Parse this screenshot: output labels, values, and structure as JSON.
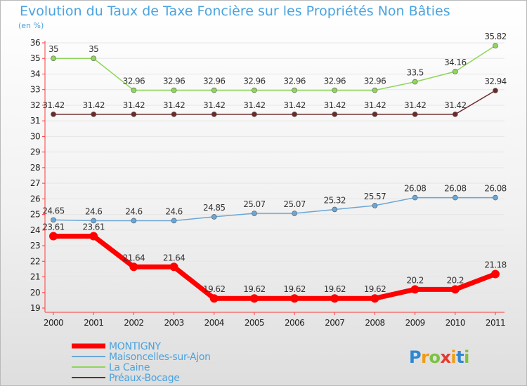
{
  "chart_data": {
    "type": "line",
    "title": "Evolution du Taux de Taxe Foncière sur les Propriétés Non Bâties",
    "subtitle": "(en %)",
    "x": [
      2000,
      2001,
      2002,
      2003,
      2004,
      2005,
      2006,
      2007,
      2008,
      2009,
      2010,
      2011
    ],
    "xlabels": [
      "2000",
      "2001",
      "2002",
      "2003",
      "2004",
      "2005",
      "2006",
      "2007",
      "2008",
      "2009",
      "2010",
      "2011"
    ],
    "ylim": [
      19,
      36
    ],
    "yticks": [
      "19",
      "20",
      "21",
      "22",
      "23",
      "24",
      "25",
      "26",
      "27",
      "28",
      "29",
      "30",
      "31",
      "32",
      "33",
      "34",
      "35",
      "36"
    ],
    "grid": "horizontal",
    "series": [
      {
        "name": "Préaux-Bocage",
        "color": "#6b2a2a",
        "stroke": 1.5,
        "marker": 3.5,
        "values": [
          31.42,
          31.42,
          31.42,
          31.42,
          31.42,
          31.42,
          31.42,
          31.42,
          31.42,
          31.42,
          31.42,
          32.94
        ],
        "labels": [
          "31.42",
          "31.42",
          "31.42",
          "31.42",
          "31.42",
          "31.42",
          "31.42",
          "31.42",
          "31.42",
          "31.42",
          "31.42",
          "32.94"
        ]
      },
      {
        "name": "La Caine",
        "color": "#8fd65a",
        "stroke": 1.5,
        "marker": 3.5,
        "values": [
          35,
          35,
          32.96,
          32.96,
          32.96,
          32.96,
          32.96,
          32.96,
          32.96,
          33.5,
          34.16,
          35.82
        ],
        "labels": [
          "35",
          "35",
          "32.96",
          "32.96",
          "32.96",
          "32.96",
          "32.96",
          "32.96",
          "32.96",
          "33.5",
          "34.16",
          "35.82"
        ]
      },
      {
        "name": "Maisoncelles-sur-Ajon",
        "color": "#6aa6d6",
        "stroke": 1.5,
        "marker": 3.5,
        "values": [
          24.65,
          24.6,
          24.6,
          24.6,
          24.85,
          25.07,
          25.07,
          25.32,
          25.57,
          26.08,
          26.08,
          26.08
        ],
        "labels": [
          "24.65",
          "24.6",
          "24.6",
          "24.6",
          "24.85",
          "25.07",
          "25.07",
          "25.32",
          "25.57",
          "26.08",
          "26.08",
          "26.08"
        ]
      },
      {
        "name": "MONTIGNY",
        "color": "#ff0000",
        "stroke": 7,
        "marker": 6,
        "values": [
          23.61,
          23.61,
          21.64,
          21.64,
          19.62,
          19.62,
          19.62,
          19.62,
          19.62,
          20.2,
          20.2,
          21.18
        ],
        "labels": [
          "23.61",
          "23.61",
          "21.64",
          "21.64",
          "19.62",
          "19.62",
          "19.62",
          "19.62",
          "19.62",
          "20.2",
          "20.2",
          "21.18"
        ]
      }
    ],
    "legend_order": [
      "MONTIGNY",
      "Maisoncelles-sur-Ajon",
      "La Caine",
      "Préaux-Bocage"
    ]
  },
  "logo": {
    "text": "Proxiti"
  }
}
